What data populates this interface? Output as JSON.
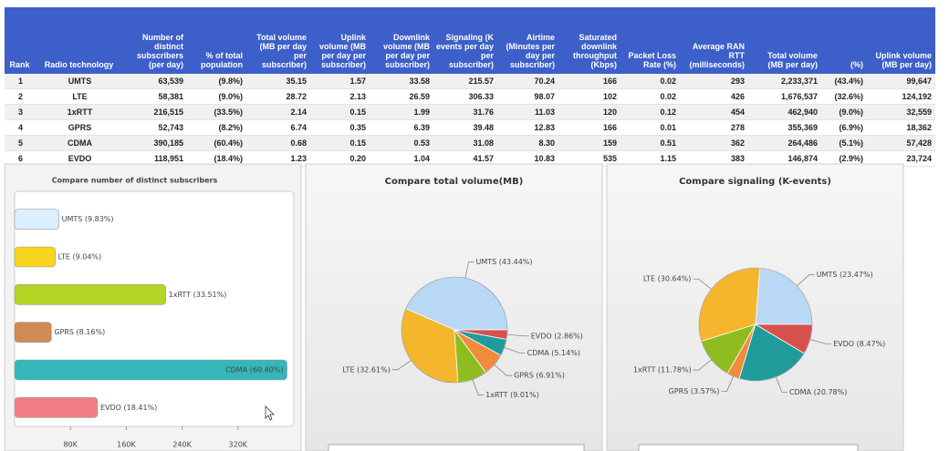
{
  "table": {
    "columns": [
      "Rank",
      "Radio technology",
      "Number of distinct subscribers (per day)",
      "% of total population",
      "Total volume (MB per day per subscriber)",
      "Uplink volume (MB per day per subscriber)",
      "Downlink volume (MB per day per subscriber)",
      "Signaling (K events per day per subscriber)",
      "Airtime (Minutes per day per subscriber)",
      "Saturated downlink throughput (Kbps)",
      "Packet Loss Rate (%)",
      "Average RAN RTT (milliseconds)",
      "Total volume (MB per day)",
      "(%)",
      "Uplink volume (MB per day)"
    ],
    "rows": [
      [
        "1",
        "UMTS",
        "63,539",
        "(9.8%)",
        "35.15",
        "1.57",
        "33.58",
        "215.57",
        "70.24",
        "166",
        "0.02",
        "293",
        "2,233,371",
        "(43.4%)",
        "99,647"
      ],
      [
        "2",
        "LTE",
        "58,381",
        "(9.0%)",
        "28.72",
        "2.13",
        "26.59",
        "306.33",
        "98.07",
        "102",
        "0.02",
        "426",
        "1,676,537",
        "(32.6%)",
        "124,192"
      ],
      [
        "3",
        "1xRTT",
        "216,515",
        "(33.5%)",
        "2.14",
        "0.15",
        "1.99",
        "31.76",
        "11.03",
        "120",
        "0.12",
        "454",
        "462,940",
        "(9.0%)",
        "32,559"
      ],
      [
        "4",
        "GPRS",
        "52,743",
        "(8.2%)",
        "6.74",
        "0.35",
        "6.39",
        "39.48",
        "12.83",
        "166",
        "0.01",
        "278",
        "355,369",
        "(6.9%)",
        "18,362"
      ],
      [
        "5",
        "CDMA",
        "390,185",
        "(60.4%)",
        "0.68",
        "0.15",
        "0.53",
        "31.08",
        "8.30",
        "159",
        "0.51",
        "362",
        "264,486",
        "(5.1%)",
        "57,428"
      ],
      [
        "6",
        "EVDO",
        "118,951",
        "(18.4%)",
        "1.23",
        "0.20",
        "1.04",
        "41.57",
        "10.83",
        "535",
        "1.15",
        "383",
        "146,874",
        "(2.9%)",
        "23,724"
      ]
    ]
  },
  "chart_data": [
    {
      "type": "barh",
      "title": "Compare number of distinct subscribers",
      "categories": [
        "UMTS (9.83%)",
        "LTE (9.04%)",
        "1xRTT (33.51%)",
        "GPRS (8.16%)",
        "CDMA (60.40%)",
        "EVDO (18.41%)"
      ],
      "values": [
        63539,
        58381,
        216515,
        52743,
        390185,
        118951
      ],
      "colors": [
        "#dcefff",
        "#f7d51e",
        "#b3d526",
        "#d08a55",
        "#35b6b9",
        "#f27f86"
      ],
      "xlim": [
        0,
        400000
      ],
      "xticks": [
        {
          "value": 80000,
          "label": "80K"
        },
        {
          "value": 160000,
          "label": "160K"
        },
        {
          "value": 240000,
          "label": "240K"
        },
        {
          "value": 320000,
          "label": "320K"
        }
      ]
    },
    {
      "type": "pie",
      "title": "Compare total volume(MB)",
      "categories": [
        "UMTS",
        "LTE",
        "1xRTT",
        "GPRS",
        "CDMA",
        "EVDO"
      ],
      "values": [
        43.44,
        32.61,
        9.01,
        6.91,
        5.14,
        2.86
      ],
      "value_labels": [
        "UMTS (43.44%)",
        "LTE (32.61%)",
        "1xRTT (9.01%)",
        "GPRS (6.91%)",
        "CDMA (5.14%)",
        "EVDO (2.86%)"
      ],
      "colors": [
        "#b9d8f6",
        "#f5b52c",
        "#8fbd1f",
        "#f38b3c",
        "#1f9b9b",
        "#d8504e"
      ]
    },
    {
      "type": "pie",
      "title": "Compare signaling (K-events)",
      "categories": [
        "UMTS",
        "LTE",
        "1xRTT",
        "GPRS",
        "CDMA",
        "EVDO"
      ],
      "values": [
        23.47,
        30.64,
        11.78,
        3.57,
        20.78,
        8.47
      ],
      "value_labels": [
        "UMTS (23.47%)",
        "LTE (30.64%)",
        "1xRTT (11.78%)",
        "GPRS (3.57%)",
        "CDMA (20.78%)",
        "EVDO (8.47%)"
      ],
      "colors": [
        "#b9d8f6",
        "#f5b52c",
        "#8fbd1f",
        "#f38b3c",
        "#1f9b9b",
        "#d8504e"
      ]
    }
  ]
}
